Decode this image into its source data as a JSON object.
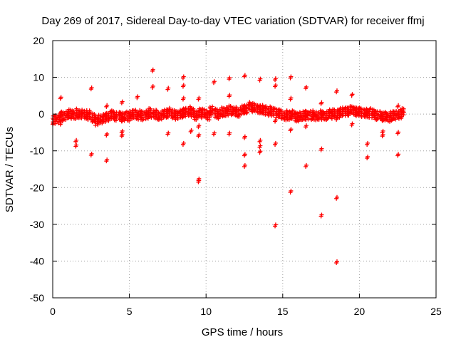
{
  "chart_data": {
    "type": "scatter",
    "title": "Day 269 of 2017, Sidereal Day-to-day VTEC variation (SDTVAR) for receiver ffmj",
    "xlabel": "GPS time / hours",
    "ylabel": "SDTVAR / TECUs",
    "xlim": [
      0,
      25
    ],
    "ylim": [
      -50,
      20
    ],
    "x_ticks": [
      0,
      5,
      10,
      15,
      20,
      25
    ],
    "y_ticks": [
      -50,
      -40,
      -30,
      -20,
      -10,
      0,
      10,
      20
    ],
    "grid": true,
    "legend": "none",
    "marker": "+",
    "color": "#ff0000",
    "band": {
      "x": [
        0.0,
        0.25,
        0.5,
        0.75,
        1.0,
        1.25,
        1.5,
        1.75,
        2.0,
        2.25,
        2.5,
        2.75,
        3.0,
        3.25,
        3.5,
        3.75,
        4.0,
        4.25,
        4.5,
        4.75,
        5.0,
        5.25,
        5.5,
        5.75,
        6.0,
        6.25,
        6.5,
        6.75,
        7.0,
        7.25,
        7.5,
        7.75,
        8.0,
        8.25,
        8.5,
        8.75,
        9.0,
        9.25,
        9.5,
        9.75,
        10.0,
        10.25,
        10.5,
        10.75,
        11.0,
        11.25,
        11.5,
        11.75,
        12.0,
        12.25,
        12.5,
        12.75,
        13.0,
        13.25,
        13.5,
        13.75,
        14.0,
        14.25,
        14.5,
        14.75,
        15.0,
        15.25,
        15.5,
        15.75,
        16.0,
        16.25,
        16.5,
        16.75,
        17.0,
        17.25,
        17.5,
        17.75,
        18.0,
        18.25,
        18.5,
        18.75,
        19.0,
        19.25,
        19.5,
        19.75,
        20.0,
        20.25,
        20.5,
        20.75,
        21.0,
        21.25,
        21.5,
        21.75,
        22.0,
        22.25,
        22.5,
        22.75
      ],
      "y": [
        -1.5,
        -1.2,
        -0.6,
        -0.3,
        0.0,
        -0.2,
        0.2,
        -0.1,
        0.0,
        -0.3,
        -1.0,
        -1.8,
        -1.5,
        -1.0,
        -0.6,
        -0.3,
        -0.5,
        -0.7,
        -0.8,
        -0.6,
        -0.3,
        0.0,
        -0.2,
        -0.5,
        -0.1,
        0.3,
        0.0,
        -0.3,
        -0.4,
        0.3,
        0.4,
        0.0,
        -0.2,
        0.0,
        0.5,
        0.8,
        0.3,
        -0.3,
        0.2,
        0.3,
        -0.3,
        0.8,
        0.3,
        0.0,
        0.5,
        0.8,
        1.0,
        0.8,
        0.5,
        1.0,
        1.5,
        2.0,
        1.8,
        1.5,
        1.2,
        1.0,
        0.8,
        0.5,
        0.3,
        0.0,
        -0.5,
        -0.3,
        -0.3,
        -0.7,
        -0.7,
        -0.4,
        -0.3,
        -0.3,
        -0.5,
        -0.3,
        -0.5,
        -0.3,
        0.0,
        0.2,
        0.3,
        0.5,
        0.7,
        0.9,
        0.8,
        0.7,
        0.5,
        0.3,
        0.3,
        0.0,
        -0.3,
        -0.5,
        -0.7,
        -0.8,
        -0.5,
        -0.3,
        0.0,
        0.3
      ]
    },
    "outliers": {
      "x": [
        0.5,
        0.5,
        1.5,
        1.5,
        2.5,
        2.5,
        3.5,
        3.5,
        3.5,
        4.5,
        4.5,
        4.5,
        5.5,
        6.5,
        6.5,
        7.5,
        7.5,
        8.5,
        8.5,
        8.5,
        8.5,
        9.0,
        9.5,
        9.5,
        9.5,
        9.5,
        9.5,
        10.5,
        10.5,
        11.5,
        11.5,
        11.5,
        12.5,
        12.5,
        12.5,
        12.5,
        13.5,
        13.5,
        13.5,
        13.5,
        14.5,
        14.5,
        14.5,
        14.5,
        14.5,
        15.5,
        15.5,
        15.5,
        15.5,
        16.5,
        16.5,
        16.5,
        17.5,
        17.5,
        17.5,
        18.5,
        18.5,
        18.5,
        18.5,
        19.5,
        19.5,
        20.5,
        20.5,
        21.5,
        21.5,
        22.5,
        22.5,
        22.5
      ],
      "y": [
        4.2,
        -2.8,
        -7.5,
        -8.8,
        6.8,
        -11.2,
        2.0,
        -5.8,
        -12.8,
        3.0,
        -5.0,
        -6.0,
        4.4,
        11.7,
        7.2,
        6.7,
        -5.5,
        9.8,
        7.5,
        4.0,
        -8.3,
        -4.8,
        4.0,
        -3.5,
        -6.0,
        -18.0,
        -18.5,
        8.5,
        -5.5,
        9.5,
        4.8,
        -5.5,
        10.2,
        -6.5,
        -11.3,
        -14.3,
        9.2,
        -7.5,
        -9.0,
        -10.5,
        9.3,
        7.5,
        -2.0,
        -8.3,
        -30.5,
        9.8,
        4.0,
        -4.5,
        -21.3,
        7.0,
        -3.5,
        -14.3,
        2.8,
        -9.8,
        -27.8,
        6.0,
        -1.5,
        -23.0,
        -40.5,
        5.0,
        -3.0,
        -8.3,
        -12.0,
        -5.0,
        -6.0,
        -5.3,
        -11.3,
        2.0
      ]
    }
  }
}
